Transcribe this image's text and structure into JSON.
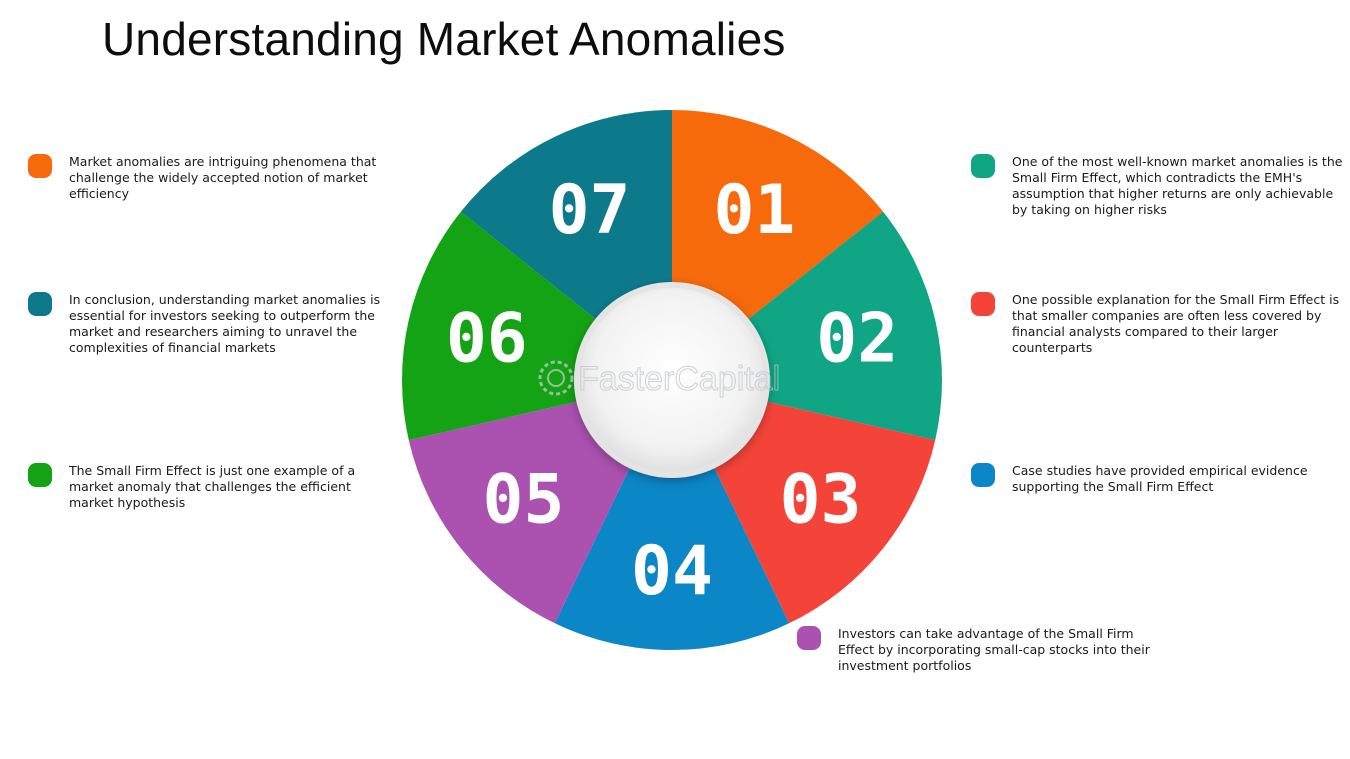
{
  "title": "Understanding Market Anomalies",
  "watermark": "FasterCapital",
  "segments": [
    {
      "number": "01",
      "color": "#f76a0c",
      "text": "Market anomalies are intriguing phenomena that challenge the widely accepted notion of market efficiency"
    },
    {
      "number": "02",
      "color": "#0fa585",
      "text": "One of the most well-known market anomalies is the Small Firm Effect, which contradicts the EMH's assumption that higher returns are only achievable by taking on higher risks"
    },
    {
      "number": "03",
      "color": "#f4443a",
      "text": "One possible explanation for the Small Firm Effect is that smaller companies are often less covered by financial analysts compared to their larger counterparts"
    },
    {
      "number": "04",
      "color": "#0b86c7",
      "text": "Case studies have provided empirical evidence supporting the Small Firm Effect"
    },
    {
      "number": "05",
      "color": "#ab51b0",
      "text": "Investors can take advantage of the Small Firm Effect by incorporating small-cap stocks into their investment portfolios"
    },
    {
      "number": "06",
      "color": "#14a315",
      "text": "The Small Firm Effect is just one example of a market anomaly that challenges the efficient market hypothesis"
    },
    {
      "number": "07",
      "color": "#0d7a8b",
      "text": "In conclusion, understanding market anomalies is essential for investors seeking to outperform the market and researchers aiming to unravel the complexities of financial markets"
    }
  ]
}
